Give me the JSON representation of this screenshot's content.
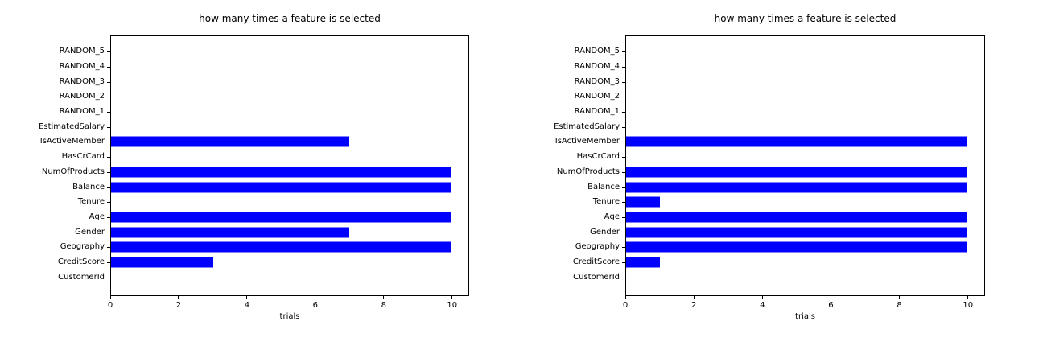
{
  "figure": {
    "background": "#ffffff",
    "axes_color": "#000000",
    "text_color": "#000000"
  },
  "chart_data": [
    {
      "type": "bar",
      "orientation": "horizontal",
      "title": "how many times a feature is selected",
      "xlabel": "trials",
      "ylabel": "",
      "category_order": "top-to-bottom",
      "categories": [
        "RANDOM_5",
        "RANDOM_4",
        "RANDOM_3",
        "RANDOM_2",
        "RANDOM_1",
        "EstimatedSalary",
        "IsActiveMember",
        "HasCrCard",
        "NumOfProducts",
        "Balance",
        "Tenure",
        "Age",
        "Gender",
        "Geography",
        "CreditScore",
        "CustomerId"
      ],
      "values": [
        0,
        0,
        0,
        0,
        0,
        0,
        7,
        0,
        10,
        10,
        0,
        10,
        7,
        10,
        3,
        0
      ],
      "xlim": [
        0,
        10.5
      ],
      "xticks": [
        0,
        2,
        4,
        6,
        8,
        10
      ],
      "bar_color": "#0000ff",
      "grid": false,
      "legend": null
    },
    {
      "type": "bar",
      "orientation": "horizontal",
      "title": "how many times a feature is selected",
      "xlabel": "trials",
      "ylabel": "",
      "category_order": "top-to-bottom",
      "categories": [
        "RANDOM_5",
        "RANDOM_4",
        "RANDOM_3",
        "RANDOM_2",
        "RANDOM_1",
        "EstimatedSalary",
        "IsActiveMember",
        "HasCrCard",
        "NumOfProducts",
        "Balance",
        "Tenure",
        "Age",
        "Gender",
        "Geography",
        "CreditScore",
        "CustomerId"
      ],
      "values": [
        0,
        0,
        0,
        0,
        0,
        0,
        10,
        0,
        10,
        10,
        1,
        10,
        10,
        10,
        1,
        0
      ],
      "xlim": [
        0,
        10.5
      ],
      "xticks": [
        0,
        2,
        4,
        6,
        8,
        10
      ],
      "bar_color": "#0000ff",
      "grid": false,
      "legend": null
    }
  ]
}
